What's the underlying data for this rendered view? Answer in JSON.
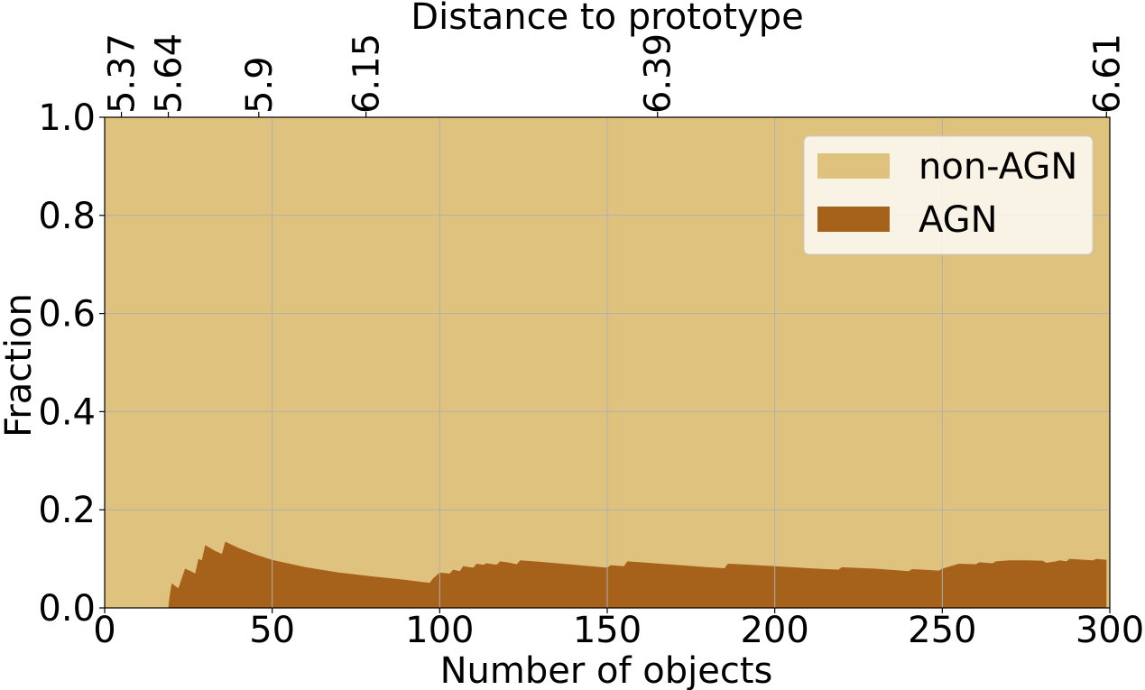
{
  "chart_data": {
    "type": "area",
    "stacked": true,
    "xlabel": "Number of objects",
    "ylabel": "Fraction",
    "top_xlabel": "Distance to prototype",
    "xlim": [
      0,
      300
    ],
    "ylim": [
      0,
      1
    ],
    "grid": true,
    "x_ticks": [
      0,
      50,
      100,
      150,
      200,
      250,
      300
    ],
    "x_tick_labels": [
      "0",
      "50",
      "100",
      "150",
      "200",
      "250",
      "300"
    ],
    "y_ticks": [
      0,
      0.2,
      0.4,
      0.6,
      0.8,
      1.0
    ],
    "y_tick_labels": [
      "0.0",
      "0.2",
      "0.4",
      "0.6",
      "0.8",
      "1.0"
    ],
    "top_ticks": [
      {
        "x": 5,
        "label": "5.37"
      },
      {
        "x": 19,
        "label": "5.64"
      },
      {
        "x": 46,
        "label": "5.9"
      },
      {
        "x": 78,
        "label": "6.15"
      },
      {
        "x": 165,
        "label": "6.39"
      },
      {
        "x": 299,
        "label": "6.61"
      }
    ],
    "legend_position": "top-right",
    "series": [
      {
        "name": "non-AGN",
        "color": "#dfc27d",
        "values_note": "complement of AGN fraction (1 - AGN)"
      },
      {
        "name": "AGN",
        "color": "#a6611a",
        "x": [
          0,
          19,
          19.3,
          20,
          21,
          22,
          23,
          24,
          25,
          26,
          27,
          28,
          29,
          30,
          31,
          32,
          33,
          34,
          35,
          36,
          40,
          45,
          50,
          60,
          70,
          80,
          90,
          97,
          98,
          100,
          103,
          104,
          106,
          107,
          110,
          111,
          113,
          114,
          117,
          118,
          120,
          121,
          123,
          124,
          130,
          140,
          150,
          151,
          155,
          156,
          160,
          170,
          180,
          185,
          186,
          190,
          200,
          210,
          219,
          220,
          230,
          240,
          241,
          249,
          250,
          252,
          255,
          260,
          261,
          265,
          266,
          270,
          275,
          280,
          281,
          284,
          285,
          287,
          288,
          290,
          295,
          296,
          299,
          299.01
        ],
        "values": [
          0,
          0,
          0.02,
          0.05,
          0.045,
          0.04,
          0.06,
          0.08,
          0.077,
          0.074,
          0.07,
          0.1,
          0.097,
          0.128,
          0.124,
          0.12,
          0.116,
          0.113,
          0.11,
          0.135,
          0.122,
          0.109,
          0.098,
          0.083,
          0.072,
          0.064,
          0.057,
          0.051,
          0.06,
          0.072,
          0.07,
          0.078,
          0.075,
          0.085,
          0.082,
          0.09,
          0.088,
          0.091,
          0.088,
          0.095,
          0.093,
          0.092,
          0.089,
          0.097,
          0.094,
          0.088,
          0.082,
          0.087,
          0.085,
          0.095,
          0.093,
          0.088,
          0.083,
          0.081,
          0.09,
          0.089,
          0.085,
          0.081,
          0.078,
          0.083,
          0.08,
          0.075,
          0.079,
          0.076,
          0.08,
          0.084,
          0.09,
          0.089,
          0.093,
          0.091,
          0.095,
          0.097,
          0.097,
          0.096,
          0.092,
          0.095,
          0.097,
          0.095,
          0.1,
          0.099,
          0.097,
          0.1,
          0.098,
          0
        ]
      }
    ]
  }
}
